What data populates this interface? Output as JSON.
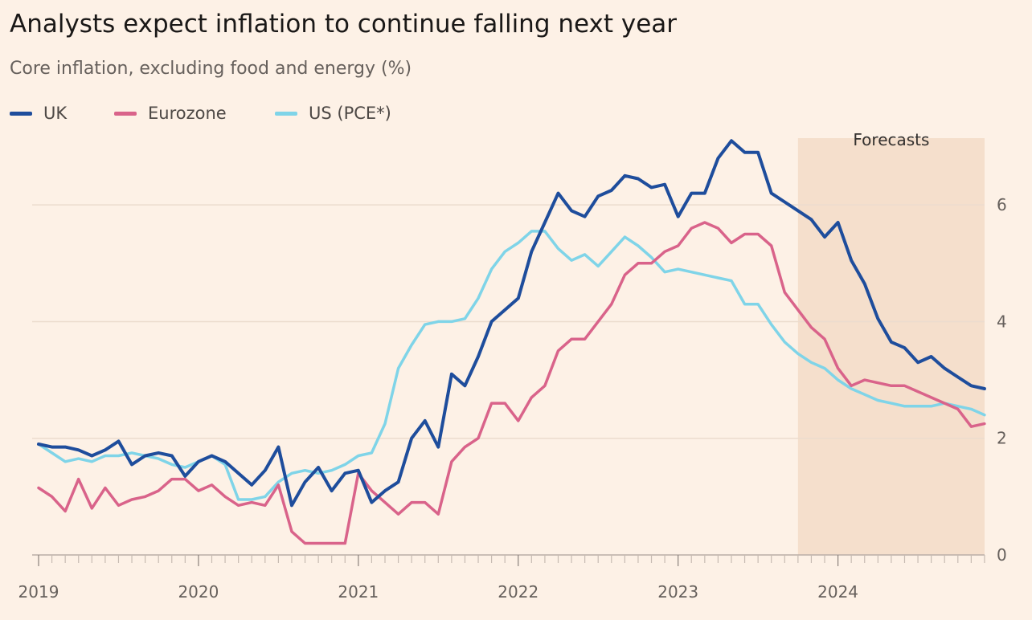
{
  "chart_data": {
    "type": "line",
    "title": "Analysts expect inflation to continue falling next year",
    "subtitle": "Core inflation, excluding food and energy (%)",
    "xlabel": "",
    "ylabel": "",
    "ylim": [
      0,
      7.2
    ],
    "yticks": [
      0,
      2,
      4,
      6
    ],
    "yticklabels": [
      "0",
      "2",
      "4",
      "6"
    ],
    "xticklabels": [
      "2019",
      "2020",
      "2021",
      "2022",
      "2023",
      "2024"
    ],
    "x_range_years": [
      2019.0,
      2024.917
    ],
    "forecast": {
      "label": "Forecasts",
      "start_year": 2023.75,
      "end_year": 2024.917
    },
    "series": [
      {
        "name": "UK",
        "color": "#1e4d9c",
        "values": [
          1.9,
          1.85,
          1.85,
          1.8,
          1.7,
          1.8,
          1.95,
          1.55,
          1.7,
          1.75,
          1.7,
          1.35,
          1.6,
          1.7,
          1.6,
          1.4,
          1.2,
          1.45,
          1.85,
          0.85,
          1.25,
          1.5,
          1.1,
          1.4,
          1.45,
          0.9,
          1.1,
          1.25,
          2.0,
          2.3,
          1.85,
          3.1,
          2.9,
          3.4,
          4.0,
          4.2,
          4.4,
          5.2,
          5.7,
          6.2,
          5.9,
          5.8,
          6.15,
          6.25,
          6.5,
          6.45,
          6.3,
          6.35,
          5.8,
          6.2,
          6.2,
          6.8,
          7.1,
          6.9,
          6.9,
          6.2,
          6.05,
          5.9,
          5.75,
          5.45,
          5.7,
          5.05,
          4.65,
          4.05,
          3.65,
          3.55,
          3.3,
          3.4,
          3.2,
          3.05,
          2.9,
          2.85
        ]
      },
      {
        "name": "Eurozone",
        "color": "#d9638a",
        "values": [
          1.15,
          1.0,
          0.75,
          1.3,
          0.8,
          1.15,
          0.85,
          0.95,
          1.0,
          1.1,
          1.3,
          1.3,
          1.1,
          1.2,
          1.0,
          0.85,
          0.9,
          0.85,
          1.2,
          0.4,
          0.2,
          0.2,
          0.2,
          0.2,
          1.4,
          1.1,
          0.9,
          0.7,
          0.9,
          0.9,
          0.7,
          1.6,
          1.85,
          2.0,
          2.6,
          2.6,
          2.3,
          2.7,
          2.9,
          3.5,
          3.7,
          3.7,
          4.0,
          4.3,
          4.8,
          5.0,
          5.0,
          5.2,
          5.3,
          5.6,
          5.7,
          5.6,
          5.35,
          5.5,
          5.5,
          5.3,
          4.5,
          4.2,
          3.9,
          3.7,
          3.2,
          2.9,
          3.0,
          2.95,
          2.9,
          2.9,
          2.8,
          2.7,
          2.6,
          2.5,
          2.2,
          2.25
        ]
      },
      {
        "name": "US (PCE*)",
        "color": "#7fd4e8",
        "values": [
          1.9,
          1.75,
          1.6,
          1.65,
          1.6,
          1.7,
          1.7,
          1.75,
          1.7,
          1.65,
          1.55,
          1.5,
          1.6,
          1.7,
          1.55,
          0.95,
          0.95,
          1.0,
          1.25,
          1.4,
          1.45,
          1.4,
          1.45,
          1.55,
          1.7,
          1.75,
          2.25,
          3.2,
          3.6,
          3.95,
          4.0,
          4.0,
          4.05,
          4.4,
          4.9,
          5.2,
          5.35,
          5.55,
          5.55,
          5.25,
          5.05,
          5.15,
          4.95,
          5.2,
          5.45,
          5.3,
          5.1,
          4.85,
          4.9,
          4.85,
          4.8,
          4.75,
          4.7,
          4.3,
          4.3,
          3.95,
          3.65,
          3.45,
          3.3,
          3.2,
          3.0,
          2.85,
          2.75,
          2.65,
          2.6,
          2.55,
          2.55,
          2.55,
          2.6,
          2.55,
          2.5,
          2.4
        ]
      }
    ]
  }
}
